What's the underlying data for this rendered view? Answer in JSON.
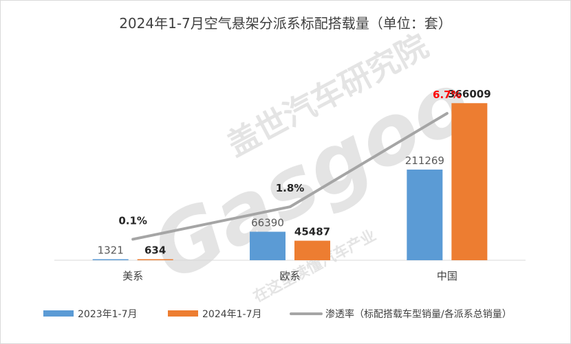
{
  "chart_data": {
    "type": "bar",
    "title": "2024年1-7月空气悬架分派系标配搭载量（单位：套）",
    "categories": [
      "美系",
      "欧系",
      "中国"
    ],
    "series": [
      {
        "name": "2023年1-7月",
        "type": "bar",
        "color": "#5b9bd5",
        "values": [
          1321,
          66390,
          211269
        ],
        "labels": [
          "1321",
          "66390",
          "211269"
        ]
      },
      {
        "name": "2024年1-7月",
        "type": "bar",
        "color": "#ed7d31",
        "values": [
          634,
          45487,
          366009
        ],
        "labels": [
          "634",
          "45487",
          "366009"
        ]
      },
      {
        "name": "渗透率（标配搭载车型销量/各派系总销量）",
        "type": "line",
        "color": "#a5a5a5",
        "values": [
          0.1,
          1.8,
          6.7
        ],
        "labels": [
          "0.1%",
          "1.8%",
          "6.7%"
        ],
        "unit": "%"
      }
    ],
    "ylim": [
      0,
      400000
    ],
    "y2lim": [
      -1,
      8
    ],
    "grid": false,
    "legend": "bottom",
    "highlight_color": "#ff0000"
  },
  "watermark": {
    "brand_cn": "盖世汽车研究院",
    "brand_en": "Gasgoo",
    "slogan": "在这里读懂汽车产业"
  }
}
